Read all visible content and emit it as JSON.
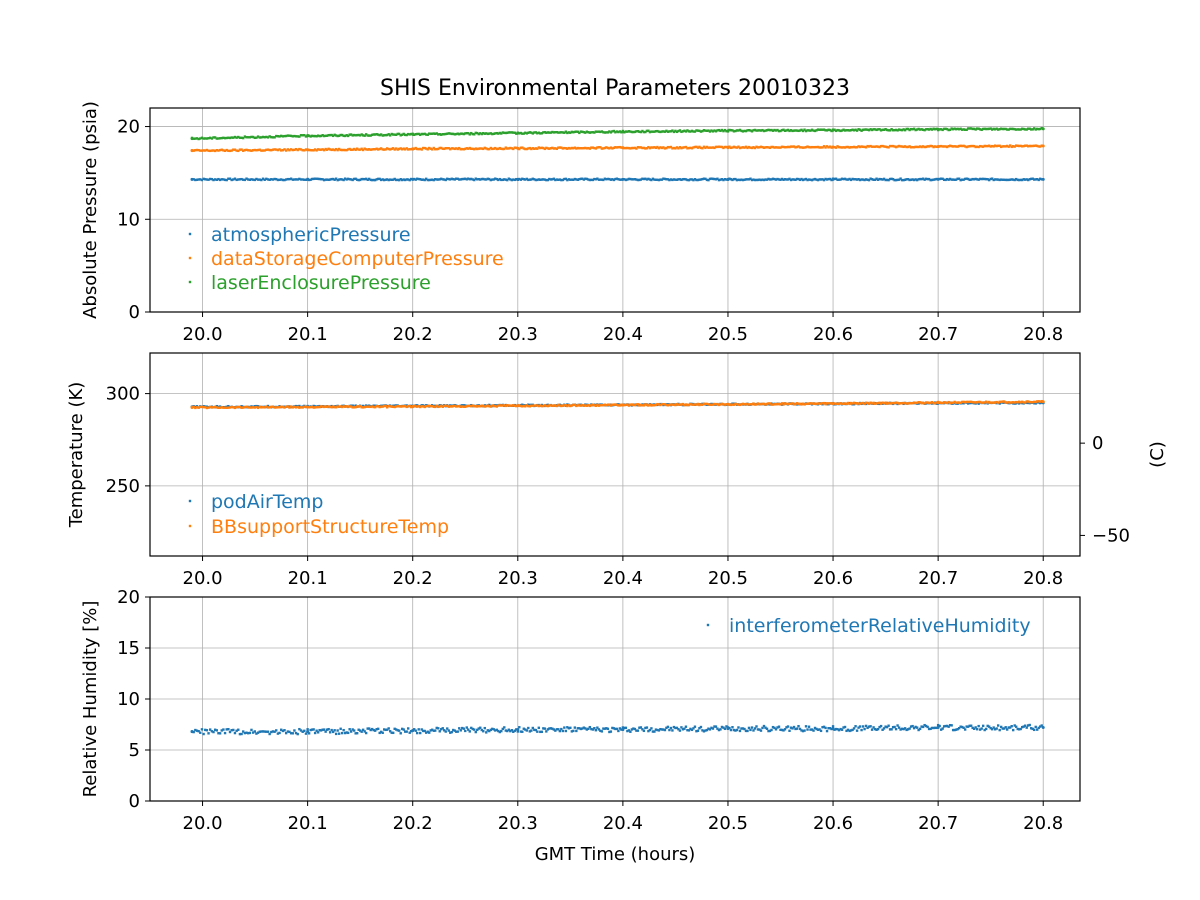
{
  "chart_data": {
    "title": "SHIS Environmental Parameters 20010323",
    "xlabel": "GMT Time (hours)",
    "xlim": [
      19.95,
      20.835
    ],
    "xticks": [
      20.0,
      20.1,
      20.2,
      20.3,
      20.4,
      20.5,
      20.6,
      20.7,
      20.8
    ],
    "panels": [
      {
        "type": "scatter",
        "ylabel": "Absolute Pressure (psia)",
        "ylim": [
          0,
          22
        ],
        "yticks": [
          0,
          10,
          20
        ],
        "grid": true,
        "legend": "lower-left",
        "series": [
          {
            "name": "atmosphericPressure",
            "color": "#1f77b4",
            "x": [
              19.99,
              20.1,
              20.2,
              20.3,
              20.4,
              20.5,
              20.6,
              20.7,
              20.8
            ],
            "y": [
              14.3,
              14.3,
              14.3,
              14.3,
              14.3,
              14.3,
              14.3,
              14.3,
              14.3
            ]
          },
          {
            "name": "dataStorageComputerPressure",
            "color": "#ff7f0e",
            "x": [
              19.99,
              20.1,
              20.2,
              20.3,
              20.4,
              20.5,
              20.6,
              20.7,
              20.8
            ],
            "y": [
              17.4,
              17.5,
              17.6,
              17.65,
              17.7,
              17.75,
              17.8,
              17.85,
              17.9
            ]
          },
          {
            "name": "laserEnclosurePressure",
            "color": "#2ca02c",
            "x": [
              19.99,
              20.1,
              20.2,
              20.3,
              20.4,
              20.5,
              20.6,
              20.7,
              20.8
            ],
            "y": [
              18.7,
              19.0,
              19.15,
              19.3,
              19.45,
              19.55,
              19.6,
              19.7,
              19.75
            ]
          }
        ]
      },
      {
        "type": "scatter",
        "ylabel": "Temperature (K)",
        "ylim": [
          212,
          322
        ],
        "yticks": [
          250,
          300
        ],
        "y2label": "(C)",
        "y2ticks": [
          -50,
          0
        ],
        "grid": true,
        "legend": "lower-left",
        "series": [
          {
            "name": "podAirTemp",
            "color": "#1f77b4",
            "x": [
              19.99,
              20.1,
              20.2,
              20.3,
              20.4,
              20.5,
              20.6,
              20.7,
              20.8
            ],
            "y": [
              292.8,
              293.0,
              293.3,
              293.6,
              293.9,
              294.2,
              294.5,
              294.8,
              295.0
            ]
          },
          {
            "name": "BBsupportStructureTemp",
            "color": "#ff7f0e",
            "x": [
              19.99,
              20.1,
              20.2,
              20.3,
              20.4,
              20.5,
              20.6,
              20.7,
              20.8
            ],
            "y": [
              292.5,
              292.7,
              293.0,
              293.4,
              293.8,
              294.2,
              294.6,
              295.1,
              295.6
            ]
          }
        ]
      },
      {
        "type": "scatter",
        "ylabel": "Relative Humidity [%]",
        "ylim": [
          0,
          20
        ],
        "yticks": [
          0,
          5,
          10,
          15,
          20
        ],
        "grid": true,
        "legend": "upper-right",
        "series": [
          {
            "name": "interferometerRelativeHumidity",
            "color": "#1f77b4",
            "x": [
              19.99,
              20.1,
              20.2,
              20.3,
              20.4,
              20.5,
              20.6,
              20.7,
              20.8
            ],
            "y": [
              6.8,
              6.8,
              6.9,
              7.0,
              7.0,
              7.1,
              7.1,
              7.2,
              7.2
            ]
          }
        ]
      }
    ]
  }
}
